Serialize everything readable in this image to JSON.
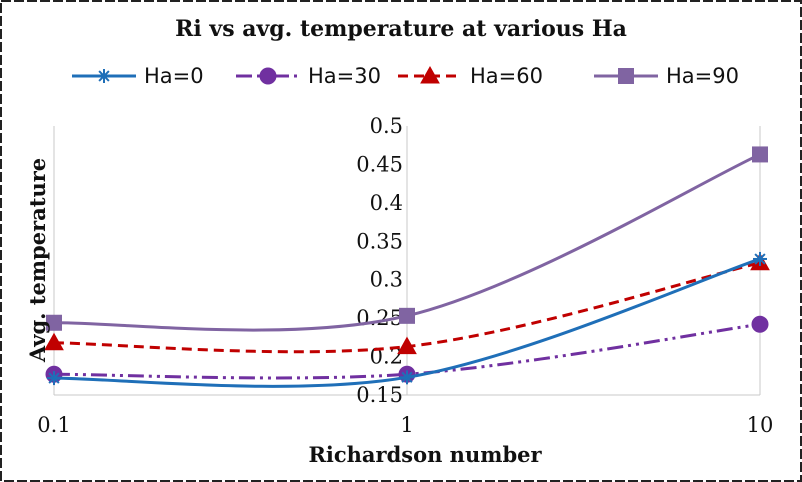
{
  "chart_data": {
    "type": "line",
    "title": "Ri vs avg. temperature at various Ha",
    "xlabel": "Richardson number",
    "ylabel": "Avg. temperature",
    "x": [
      0.1,
      1,
      10
    ],
    "x_scale": "log",
    "x_tick_labels": [
      "0.1",
      "1",
      "10"
    ],
    "ylim": [
      0.15,
      0.5
    ],
    "y_tick_labels": [
      "0.5",
      "0.45",
      "0.4",
      "0.35",
      "0.3",
      "0.25",
      "0.2",
      "0.15"
    ],
    "grid": "vertical",
    "legend_position": "top",
    "series": [
      {
        "name": "Ha=0",
        "values": [
          0.172,
          0.173,
          0.327
        ],
        "color": "#1f6fb8",
        "marker": "asterisk",
        "dash": "solid"
      },
      {
        "name": "Ha=30",
        "values": [
          0.177,
          0.177,
          0.242
        ],
        "color": "#7030a0",
        "marker": "circle",
        "dash": "dashdotdot"
      },
      {
        "name": "Ha=60",
        "values": [
          0.218,
          0.213,
          0.322
        ],
        "color": "#c00000",
        "marker": "triangle",
        "dash": "dashed"
      },
      {
        "name": "Ha=90",
        "values": [
          0.244,
          0.253,
          0.463
        ],
        "color": "#8064a2",
        "marker": "square",
        "dash": "solid"
      }
    ]
  }
}
